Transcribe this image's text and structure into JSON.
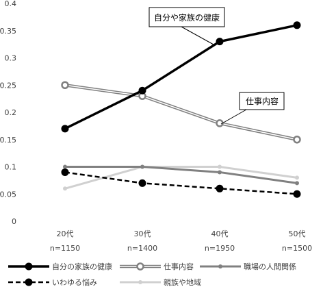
{
  "chart_data": {
    "type": "line",
    "title": "",
    "xlabel": "",
    "ylabel": "",
    "ylim": [
      0,
      0.4
    ],
    "yticks": [
      "0",
      "0.05",
      "0.1",
      "0.15",
      "0.2",
      "0.25",
      "0.3",
      "0.35",
      "0.4"
    ],
    "categories": [
      {
        "label": "20代",
        "n": "n=1150"
      },
      {
        "label": "30代",
        "n": "n=1400"
      },
      {
        "label": "40代",
        "n": "n=1950"
      },
      {
        "label": "50代",
        "n": "n=1500"
      }
    ],
    "grid": false,
    "legend_position": "bottom",
    "series": [
      {
        "name": "自分の家族の健康",
        "values": [
          0.17,
          0.24,
          0.33,
          0.36
        ],
        "color": "#000000",
        "style": "solid-thick",
        "marker": "filled-circle"
      },
      {
        "name": "仕事内容",
        "values": [
          0.25,
          0.23,
          0.18,
          0.15
        ],
        "color": "#808080",
        "style": "double",
        "marker": "hollow-circle"
      },
      {
        "name": "職場の人間関係",
        "values": [
          0.1,
          0.1,
          0.09,
          0.07
        ],
        "color": "#808080",
        "style": "solid",
        "marker": "small-filled-circle"
      },
      {
        "name": "いわゆる悩み",
        "values": [
          0.09,
          0.07,
          0.06,
          0.05
        ],
        "color": "#000000",
        "style": "dashed",
        "marker": "filled-circle"
      },
      {
        "name": "親族や地域",
        "values": [
          0.06,
          0.1,
          0.1,
          0.08
        ],
        "color": "#d0d0d0",
        "style": "solid-light",
        "marker": "small-filled-circle"
      }
    ],
    "annotations": [
      {
        "text": "自分や家族の健康",
        "series_index": 0,
        "point_index": 2
      },
      {
        "text": "仕事内容",
        "series_index": 1,
        "point_index": 2
      }
    ]
  }
}
